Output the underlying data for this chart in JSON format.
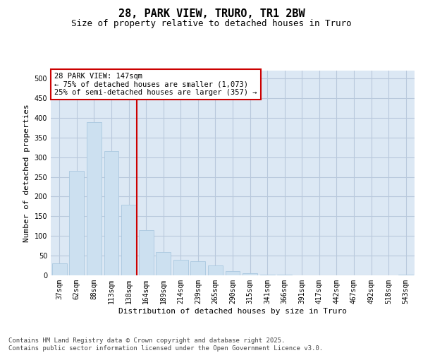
{
  "title_line1": "28, PARK VIEW, TRURO, TR1 2BW",
  "title_line2": "Size of property relative to detached houses in Truro",
  "xlabel": "Distribution of detached houses by size in Truro",
  "ylabel": "Number of detached properties",
  "categories": [
    "37sqm",
    "62sqm",
    "88sqm",
    "113sqm",
    "138sqm",
    "164sqm",
    "189sqm",
    "214sqm",
    "239sqm",
    "265sqm",
    "290sqm",
    "315sqm",
    "341sqm",
    "366sqm",
    "391sqm",
    "417sqm",
    "442sqm",
    "467sqm",
    "492sqm",
    "518sqm",
    "543sqm"
  ],
  "values": [
    30,
    265,
    390,
    315,
    180,
    115,
    60,
    40,
    35,
    25,
    10,
    5,
    2,
    1,
    0,
    0,
    0,
    0,
    0,
    0,
    1
  ],
  "bar_color": "#cce0f0",
  "bar_edge_color": "#aac8e0",
  "grid_color": "#b8c8dc",
  "bg_color": "#dce8f4",
  "vline_color": "#cc0000",
  "vline_x": 4.45,
  "annotation_text": "28 PARK VIEW: 147sqm\n← 75% of detached houses are smaller (1,073)\n25% of semi-detached houses are larger (357) →",
  "annotation_box_color": "#ffffff",
  "annotation_border_color": "#cc0000",
  "ylim": [
    0,
    520
  ],
  "yticks": [
    0,
    50,
    100,
    150,
    200,
    250,
    300,
    350,
    400,
    450,
    500
  ],
  "footer_line1": "Contains HM Land Registry data © Crown copyright and database right 2025.",
  "footer_line2": "Contains public sector information licensed under the Open Government Licence v3.0.",
  "title_fontsize": 11,
  "subtitle_fontsize": 9,
  "axis_label_fontsize": 8,
  "tick_fontsize": 7,
  "annotation_fontsize": 7.5,
  "footer_fontsize": 6.5
}
